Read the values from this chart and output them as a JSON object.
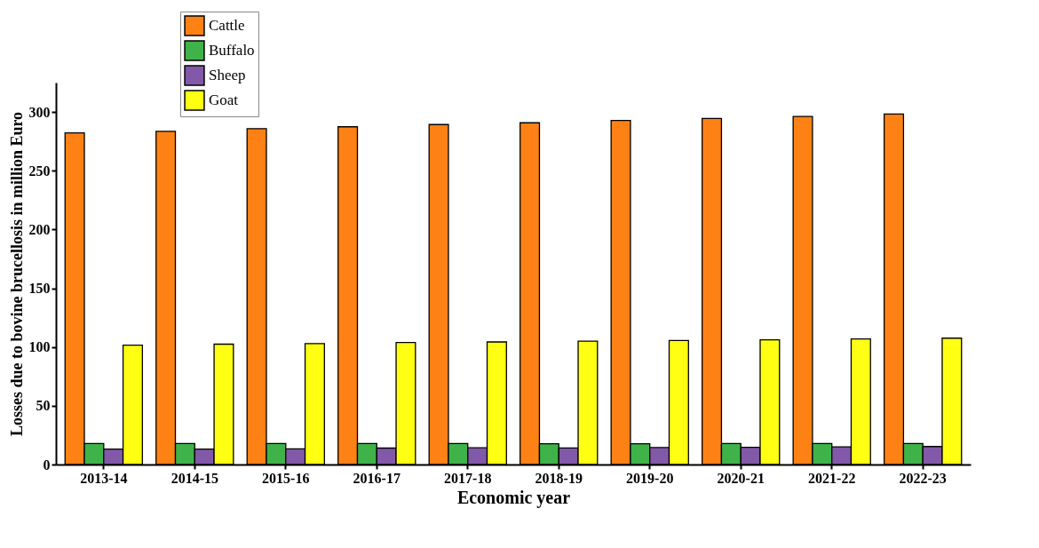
{
  "chart_data": {
    "type": "bar",
    "xlabel": "Economic year",
    "ylabel": "Losses due to bovine brucellosis in million Euro",
    "categories": [
      "2013-14",
      "2014-15",
      "2015-16",
      "2016-17",
      "2017-18",
      "2018-19",
      "2019-20",
      "2020-21",
      "2021-22",
      "2022-23"
    ],
    "series": [
      {
        "name": "Cattle",
        "color": "#fd8115",
        "values": [
          282.2,
          283.6,
          285.8,
          287.4,
          289.3,
          290.8,
          292.8,
          294.5,
          296.2,
          298.2
        ]
      },
      {
        "name": "Buffalo",
        "color": "#3fb34a",
        "values": [
          17.8,
          17.8,
          17.8,
          17.8,
          17.8,
          17.6,
          17.7,
          17.8,
          17.9,
          17.9
        ]
      },
      {
        "name": "Sheep",
        "color": "#8259a8",
        "values": [
          13.2,
          13.2,
          13.3,
          14.0,
          14.2,
          14.1,
          14.4,
          14.7,
          15.0,
          15.3
        ]
      },
      {
        "name": "Goat",
        "color": "#ffff14",
        "values": [
          101.6,
          102.4,
          102.9,
          103.8,
          104.3,
          105.0,
          105.5,
          106.1,
          106.9,
          107.5
        ]
      }
    ],
    "ylim": [
      0,
      325
    ],
    "yticks": [
      0,
      50,
      100,
      150,
      200,
      250,
      300
    ],
    "grid": false,
    "legend": "top left"
  }
}
